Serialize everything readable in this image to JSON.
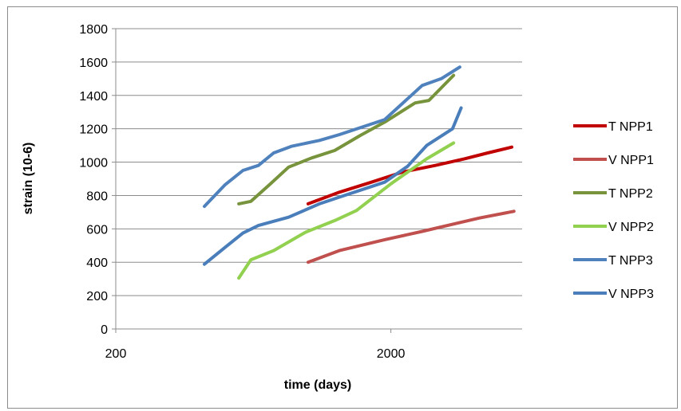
{
  "chart_data": {
    "type": "line",
    "title": "",
    "xlabel": "time (days)",
    "ylabel": "strain (10-6)",
    "x_scale": "log",
    "xlim": [
      200,
      6000
    ],
    "ylim": [
      0,
      1800
    ],
    "x_ticks": [
      200,
      2000
    ],
    "x_tick_labels": [
      "200",
      "2000"
    ],
    "y_ticks": [
      0,
      200,
      400,
      600,
      800,
      1000,
      1200,
      1400,
      1600,
      1800
    ],
    "y_tick_labels": [
      "0",
      "200",
      "400",
      "600",
      "800",
      "1000",
      "1200",
      "1400",
      "1600",
      "1800"
    ],
    "grid": "horizontal",
    "legend_position": "right",
    "series": [
      {
        "name": "T NPP1",
        "color": "#c00000",
        "x": [
          1000,
          1300,
          1700,
          2200,
          2900,
          3700,
          4500,
          5500
        ],
        "y": [
          750,
          820,
          880,
          940,
          980,
          1020,
          1055,
          1090
        ]
      },
      {
        "name": "V NPP1",
        "color": "#c0504d",
        "x": [
          1000,
          1300,
          1900,
          2600,
          3400,
          4200,
          5600
        ],
        "y": [
          400,
          470,
          535,
          585,
          630,
          665,
          705
        ]
      },
      {
        "name": "T NPP2",
        "color": "#77933c",
        "x": [
          560,
          620,
          730,
          850,
          1030,
          1250,
          1550,
          1900,
          2450,
          2750,
          3380
        ],
        "y": [
          750,
          765,
          870,
          970,
          1025,
          1070,
          1160,
          1240,
          1355,
          1370,
          1520
        ]
      },
      {
        "name": "V NPP2",
        "color": "#92d050",
        "x": [
          560,
          620,
          750,
          980,
          1250,
          1500,
          2000,
          2700,
          3380
        ],
        "y": [
          305,
          415,
          470,
          580,
          650,
          710,
          870,
          1020,
          1115
        ]
      },
      {
        "name": "T NPP3",
        "color": "#4f81bd",
        "x": [
          420,
          500,
          580,
          660,
          750,
          870,
          1100,
          1300,
          1900,
          2600,
          3050,
          3560
        ],
        "y": [
          735,
          865,
          950,
          980,
          1055,
          1095,
          1130,
          1165,
          1255,
          1460,
          1500,
          1570
        ]
      },
      {
        "name": "V NPP3",
        "color": "#4a7ebb",
        "x": [
          420,
          500,
          580,
          660,
          850,
          1100,
          1300,
          1900,
          2300,
          2700,
          3350,
          3600
        ],
        "y": [
          388,
          490,
          575,
          620,
          670,
          750,
          790,
          880,
          975,
          1100,
          1200,
          1325
        ]
      }
    ]
  }
}
